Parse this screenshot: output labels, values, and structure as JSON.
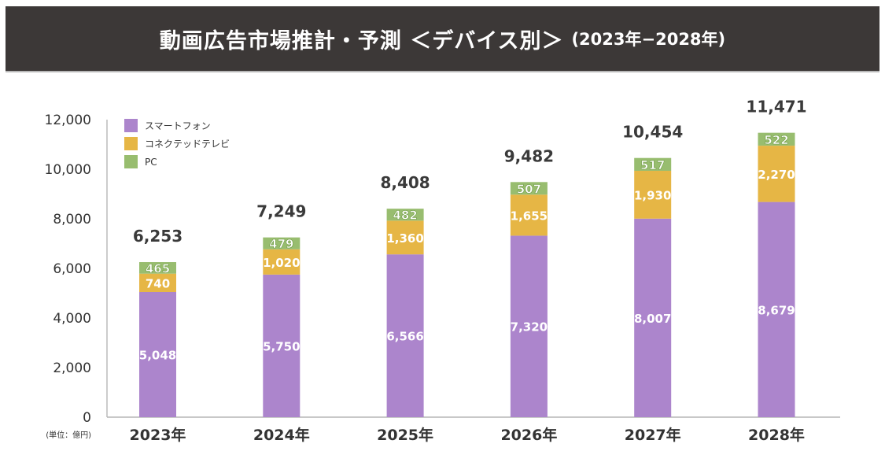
{
  "header": {
    "title": "動画広告市場推計・予測 ＜デバイス別＞",
    "subtitle": "(2023年−2028年)"
  },
  "chart_data": {
    "type": "bar",
    "stacked": true,
    "title": "動画広告市場推計・予測 ＜デバイス別＞ (2023年−2028年)",
    "unit_label": "(単位：億円)",
    "xlabel": "",
    "ylabel": "",
    "ylim": [
      0,
      12000
    ],
    "yticks": [
      0,
      2000,
      4000,
      6000,
      8000,
      10000,
      12000
    ],
    "ytick_labels": [
      "0",
      "2,000",
      "4,000",
      "6,000",
      "8,000",
      "10,000",
      "12,000"
    ],
    "categories": [
      "2023年",
      "2024年",
      "2025年",
      "2026年",
      "2027年",
      "2028年"
    ],
    "series": [
      {
        "name": "スマートフォン",
        "color": "#ac85cc",
        "values": [
          5048,
          5750,
          6566,
          7320,
          8007,
          8679
        ],
        "labels": [
          "5,048",
          "5,750",
          "6,566",
          "7,320",
          "8,007",
          "8,679"
        ]
      },
      {
        "name": "コネクテッドテレビ",
        "color": "#e6b645",
        "values": [
          740,
          1020,
          1360,
          1655,
          1930,
          2270
        ],
        "labels": [
          "740",
          "1,020",
          "1,360",
          "1,655",
          "1,930",
          "2,270"
        ]
      },
      {
        "name": "PC",
        "color": "#98bd6f",
        "values": [
          465,
          479,
          482,
          507,
          517,
          522
        ],
        "labels": [
          "465",
          "479",
          "482",
          "507",
          "517",
          "522"
        ]
      }
    ],
    "totals": [
      6253,
      7249,
      8408,
      9482,
      10454,
      11471
    ],
    "total_labels": [
      "6,253",
      "7,249",
      "8,408",
      "9,482",
      "10,454",
      "11,471"
    ],
    "legend_position": "top-left",
    "grid": false
  }
}
